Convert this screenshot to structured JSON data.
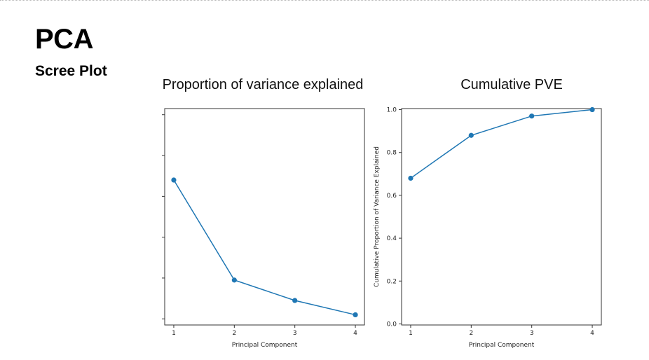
{
  "slide": {
    "title": "PCA",
    "subtitle": "Scree Plot"
  },
  "chart_data": [
    {
      "type": "line",
      "title": "Proportion of variance explained",
      "xlabel": "Principal Component",
      "ylabel": "",
      "x": [
        1,
        2,
        3,
        4
      ],
      "series": [
        {
          "values": [
            0.68,
            0.19,
            0.09,
            0.02
          ]
        }
      ],
      "xticks": [
        "1",
        "2",
        "3",
        "4"
      ],
      "yticks_labeled": false,
      "color": "#1f77b4"
    },
    {
      "type": "line",
      "title": "Cumulative PVE",
      "xlabel": "Principal Component",
      "ylabel": "Cumulative Proportion of Variance Explained",
      "x": [
        1,
        2,
        3,
        4
      ],
      "series": [
        {
          "values": [
            0.68,
            0.88,
            0.97,
            1.0
          ]
        }
      ],
      "xticks": [
        "1",
        "2",
        "3",
        "4"
      ],
      "yticks": [
        "0.0",
        "0.2",
        "0.4",
        "0.6",
        "0.8",
        "1.0"
      ],
      "ylim": [
        0,
        1
      ],
      "color": "#1f77b4"
    }
  ]
}
